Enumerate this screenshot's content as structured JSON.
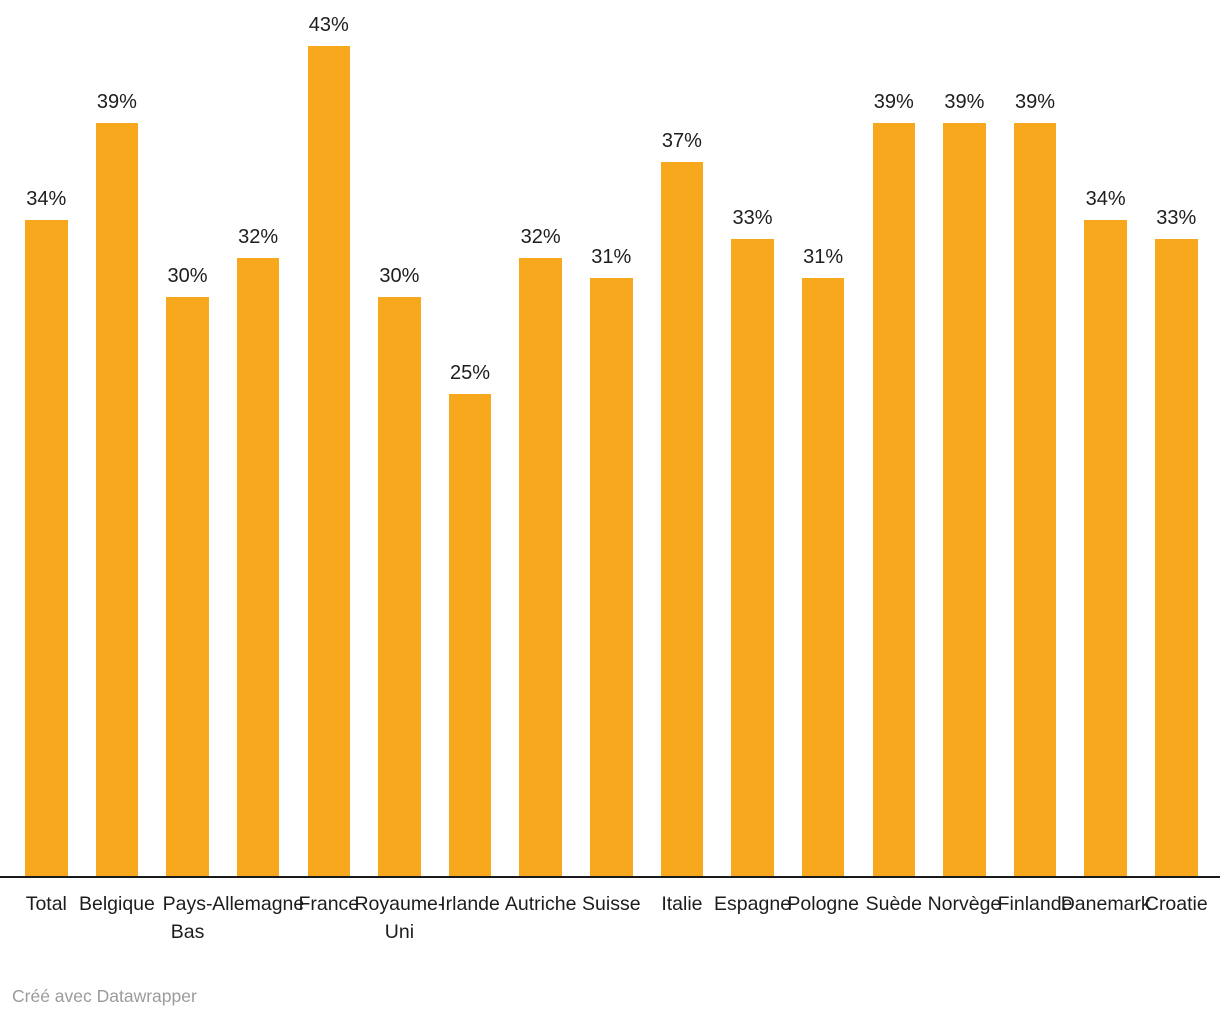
{
  "footer": {
    "credit": "Créé avec Datawrapper"
  },
  "chart_data": {
    "type": "bar",
    "title": "",
    "xlabel": "",
    "ylabel": "",
    "categories": [
      "Total",
      "Belgique",
      "Pays-Bas",
      "Allemagne",
      "France",
      "Royaume-Uni",
      "Irlande",
      "Autriche",
      "Suisse",
      "Italie",
      "Espagne",
      "Pologne",
      "Suède",
      "Norvège",
      "Finlande",
      "Danemark",
      "Croatie"
    ],
    "categories_display": [
      [
        "Total"
      ],
      [
        "Belgique"
      ],
      [
        "Pays-",
        "Bas"
      ],
      [
        "Allemagne"
      ],
      [
        "France"
      ],
      [
        "Royaume-",
        "Uni"
      ],
      [
        "Irlande"
      ],
      [
        "Autriche"
      ],
      [
        "Suisse"
      ],
      [
        "Italie"
      ],
      [
        "Espagne"
      ],
      [
        "Pologne"
      ],
      [
        "Suède"
      ],
      [
        "Norvège"
      ],
      [
        "Finlande"
      ],
      [
        "Danemark"
      ],
      [
        "Croatie"
      ]
    ],
    "values": [
      34,
      39,
      30,
      32,
      43,
      30,
      25,
      32,
      31,
      37,
      33,
      31,
      39,
      39,
      39,
      34,
      33
    ],
    "value_suffix": "%",
    "value_labels_shown": true,
    "ylim": [
      0,
      45.4
    ],
    "grid": false,
    "legend_position": "none",
    "colors": {
      "bar": "#F8A81C",
      "value_label": "#1d1d1f",
      "category_label": "#1d1d1f",
      "axis_line": "#1a1a1c",
      "footer_text": "#9b9b9b"
    }
  }
}
